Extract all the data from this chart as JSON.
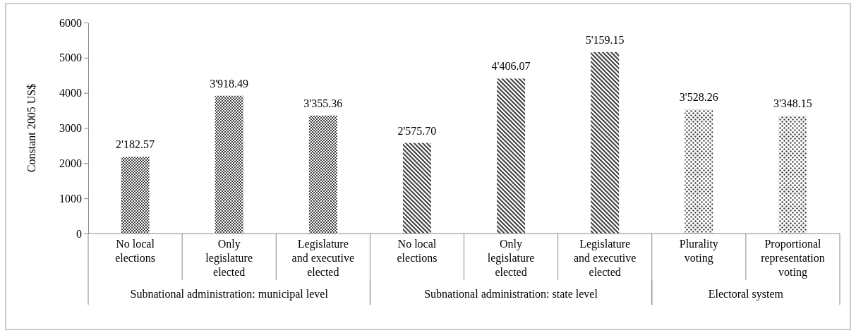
{
  "chart_data": {
    "type": "bar",
    "ylabel": "Constant 2005 US$",
    "categories": [
      "No local elections",
      "Only legislature elected",
      "Legislature and executive elected",
      "No local elections",
      "Only legislature elected",
      "Legislature and executive elected",
      "Plurality voting",
      "Proportional representation voting"
    ],
    "series": [
      {
        "color": "#404040",
        "values": [
          2182.57,
          3918.49,
          3355.36,
          null,
          null,
          null,
          null,
          null
        ],
        "value_labels": [
          "2'182.57",
          "3'918.49",
          "3'355.36",
          null,
          null,
          null,
          null,
          null
        ]
      },
      {
        "color": "#404040",
        "values": [
          null,
          null,
          null,
          2575.7,
          4406.07,
          5159.15,
          null,
          null
        ],
        "value_labels": [
          null,
          null,
          null,
          "2'575.70",
          "4'406.07",
          "5'159.15",
          null,
          null
        ]
      },
      {
        "color": "#404040",
        "values": [
          null,
          null,
          null,
          null,
          null,
          null,
          3528.26,
          3348.15
        ],
        "value_labels": [
          null,
          null,
          null,
          null,
          null,
          null,
          "3'528.26",
          "3'348.15"
        ]
      }
    ],
    "ylim": [
      0,
      6000
    ],
    "yticks": [
      0,
      1000,
      2000,
      3000,
      4000,
      5000,
      6000
    ],
    "annotations": [
      "Subnational administration: municipal level",
      "Subnational administration: state level",
      "Electoral system"
    ],
    "grid": false
  }
}
